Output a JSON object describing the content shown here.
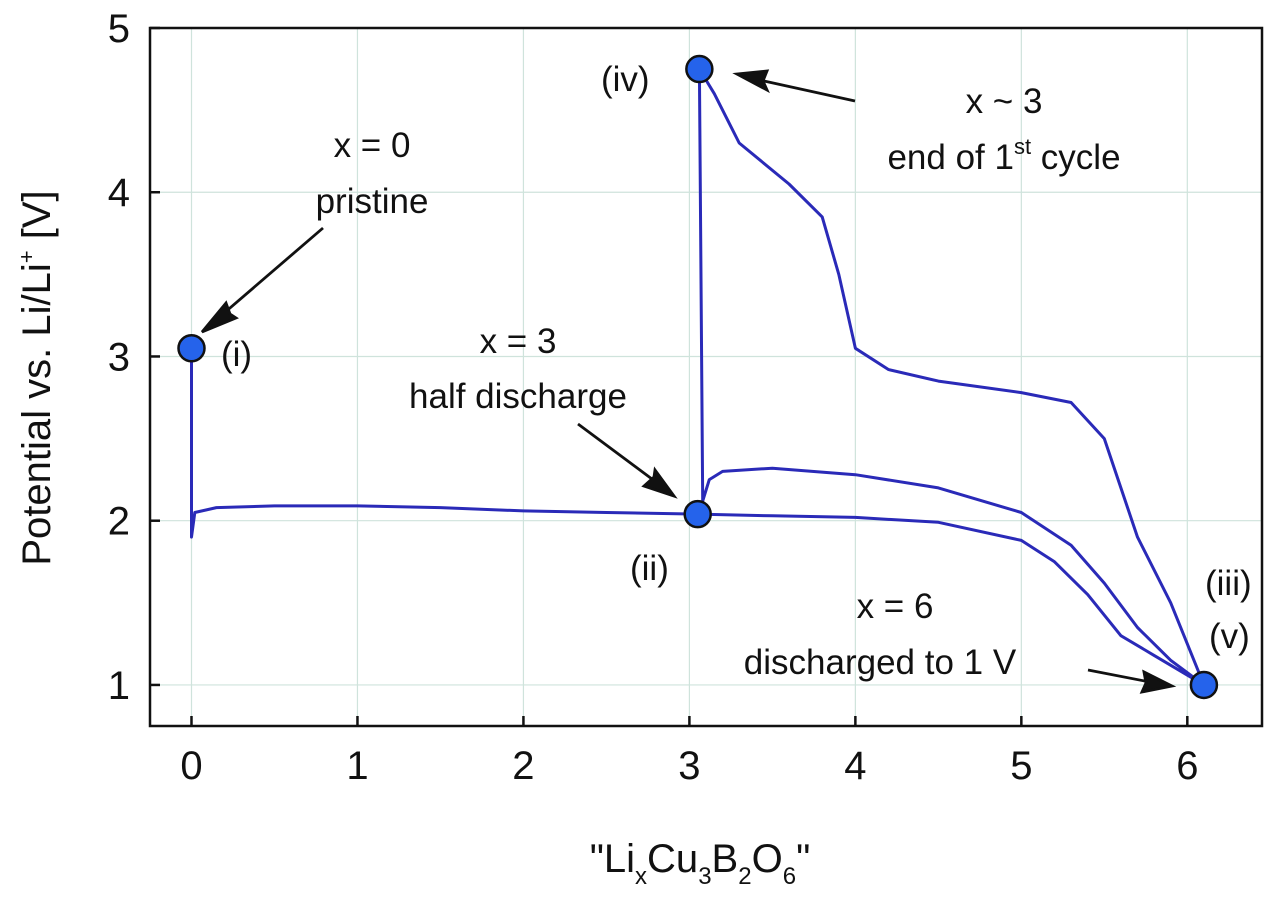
{
  "chart_data": {
    "type": "line",
    "title": "",
    "xlabel": {
      "prefix": "\"Li",
      "sub_x": "x",
      "cu": "Cu",
      "sub_3": "3",
      "b": "B",
      "sub_2": "2",
      "o": "O",
      "sub_6": "6",
      "suffix": "\""
    },
    "ylabel": {
      "main": "Potential vs. Li/Li",
      "sup": "+",
      "unit": " [V]"
    },
    "xlim": [
      -0.25,
      6.45
    ],
    "ylim": [
      0.75,
      5.0
    ],
    "xticks": [
      0,
      1,
      2,
      3,
      4,
      5,
      6
    ],
    "yticks": [
      1,
      2,
      3,
      4,
      5
    ],
    "grid": true,
    "line_color": "#2a2ab8",
    "marker_color": "#2563eb",
    "curve": [
      [
        0,
        3.05
      ],
      [
        0,
        1.9
      ],
      [
        0.02,
        2.05
      ],
      [
        0.15,
        2.08
      ],
      [
        0.5,
        2.09
      ],
      [
        1,
        2.09
      ],
      [
        1.5,
        2.08
      ],
      [
        2,
        2.06
      ],
      [
        2.5,
        2.05
      ],
      [
        3.05,
        2.04
      ],
      [
        3.5,
        2.03
      ],
      [
        4,
        2.02
      ],
      [
        4.5,
        1.99
      ],
      [
        5,
        1.88
      ],
      [
        5.2,
        1.75
      ],
      [
        5.4,
        1.55
      ],
      [
        5.6,
        1.3
      ],
      [
        5.8,
        1.18
      ],
      [
        6.1,
        1.0
      ],
      [
        5.9,
        1.15
      ],
      [
        5.7,
        1.35
      ],
      [
        5.5,
        1.62
      ],
      [
        5.3,
        1.85
      ],
      [
        5.0,
        2.05
      ],
      [
        4.5,
        2.2
      ],
      [
        4.0,
        2.28
      ],
      [
        3.5,
        2.32
      ],
      [
        3.2,
        2.3
      ],
      [
        3.12,
        2.25
      ],
      [
        3.08,
        2.12
      ],
      [
        3.06,
        4.75
      ],
      [
        3.15,
        4.6
      ],
      [
        3.3,
        4.3
      ],
      [
        3.6,
        4.05
      ],
      [
        3.8,
        3.85
      ],
      [
        3.9,
        3.5
      ],
      [
        4.0,
        3.05
      ],
      [
        4.2,
        2.92
      ],
      [
        4.5,
        2.85
      ],
      [
        5.0,
        2.78
      ],
      [
        5.3,
        2.72
      ],
      [
        5.5,
        2.5
      ],
      [
        5.6,
        2.2
      ],
      [
        5.7,
        1.9
      ],
      [
        5.9,
        1.5
      ],
      [
        6.1,
        1.0
      ]
    ],
    "points": [
      {
        "id": "i",
        "x": 0.0,
        "y": 3.05,
        "label": "(i)"
      },
      {
        "id": "ii",
        "x": 3.05,
        "y": 2.04,
        "label": "(ii)"
      },
      {
        "id": "iii-v",
        "x": 6.1,
        "y": 1.0,
        "label": "(iii)",
        "label2": "(v)"
      },
      {
        "id": "iv",
        "x": 3.06,
        "y": 4.75,
        "label": "(iv)"
      }
    ],
    "annotations": [
      {
        "id": "pristine",
        "line1": "x = 0",
        "line2": "pristine"
      },
      {
        "id": "half",
        "line1": "x = 3",
        "line2": "half discharge"
      },
      {
        "id": "discharged",
        "line1": "x = 6",
        "line2": "discharged to 1 V"
      },
      {
        "id": "end",
        "line1": "x ~ 3",
        "line2_prefix": "end of 1",
        "line2_sup": "st",
        "line2_suffix": " cycle"
      }
    ]
  }
}
